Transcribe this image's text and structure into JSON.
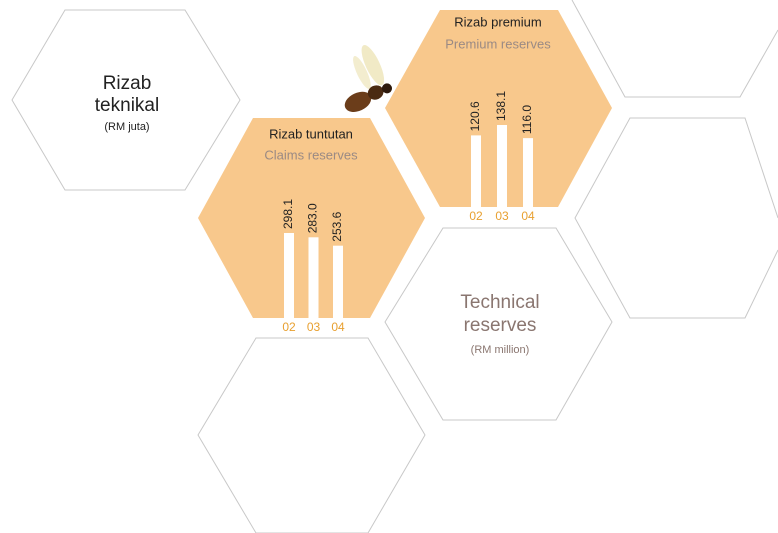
{
  "panels": {
    "malay": {
      "title": [
        "Rizab",
        "teknikal"
      ],
      "unit": "(RM juta)"
    },
    "english": {
      "title": [
        "Technical",
        "reserves"
      ],
      "unit": "(RM million)"
    }
  },
  "chart_data": [
    {
      "type": "bar",
      "title": "Rizab tuntutan",
      "subtitle": "Claims reserves",
      "categories": [
        "02",
        "03",
        "04"
      ],
      "values": [
        298.1,
        283.0,
        253.6
      ],
      "value_labels": [
        "298.1",
        "283.0",
        "253.6"
      ],
      "color": "#ffffff"
    },
    {
      "type": "bar",
      "title": "Rizab premium",
      "subtitle": "Premium reserves",
      "categories": [
        "02",
        "03",
        "04"
      ],
      "values": [
        120.6,
        138.1,
        116.0
      ],
      "value_labels": [
        "120.6",
        "138.1",
        "116.0"
      ],
      "color": "#ffffff"
    }
  ]
}
